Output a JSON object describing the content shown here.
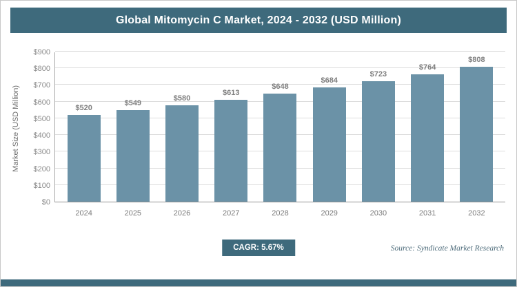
{
  "header": {
    "title": "Global Mitomycin C Market, 2024 - 2032 (USD Million)"
  },
  "chart_data": {
    "type": "bar",
    "title": "Global Mitomycin C Market, 2024 - 2032 (USD Million)",
    "categories": [
      "2024",
      "2025",
      "2026",
      "2027",
      "2028",
      "2029",
      "2030",
      "2031",
      "2032"
    ],
    "values": [
      520,
      549,
      580,
      613,
      648,
      684,
      723,
      764,
      808
    ],
    "value_labels": [
      "$520",
      "$549",
      "$580",
      "$613",
      "$648",
      "$684",
      "$723",
      "$764",
      "$808"
    ],
    "xlabel": "",
    "ylabel": "Market Size (USD Million)",
    "ylim": [
      0,
      900
    ],
    "ytick_step": 100,
    "ytick_labels": [
      "$0",
      "$100",
      "$200",
      "$300",
      "$400",
      "$500",
      "$600",
      "$700",
      "$800",
      "$900"
    ],
    "grid": "horizontal",
    "legend": "none",
    "bar_color": "#6b92a7"
  },
  "footer": {
    "cagr_label": "CAGR: 5.67%",
    "source": "Source: Syndicate Market Research"
  },
  "colors": {
    "accent": "#3e6a7c",
    "bar": "#6b92a7"
  }
}
